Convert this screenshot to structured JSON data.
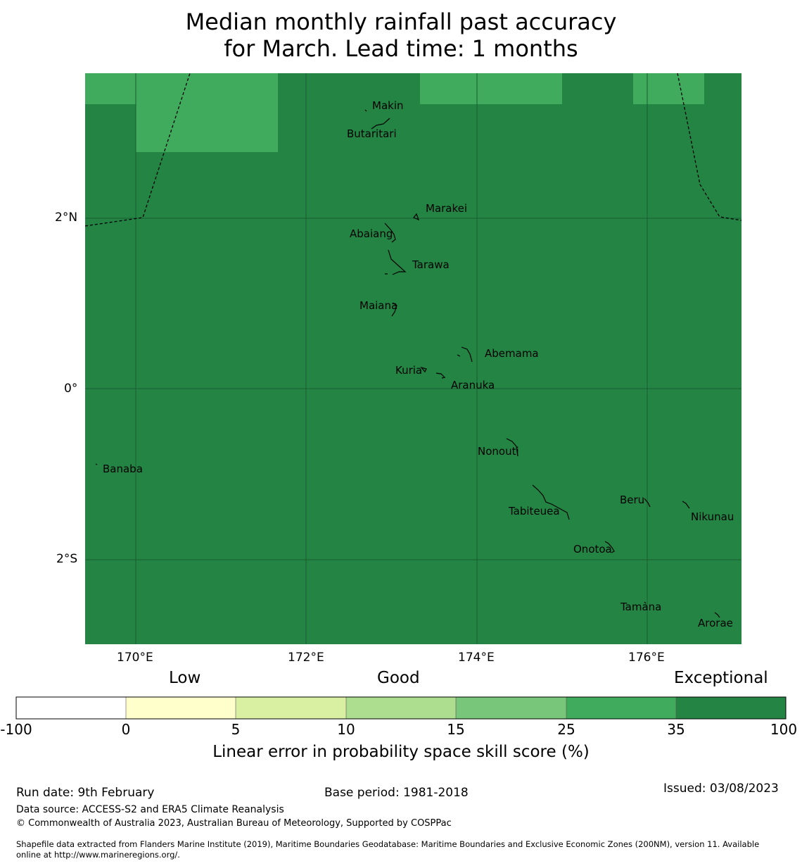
{
  "title": {
    "line1": "Median monthly rainfall past accuracy",
    "line2": "for March. Lead time: 1 months"
  },
  "map": {
    "lat_ticks": [
      "2°N",
      "0°",
      "2°S"
    ],
    "lon_ticks": [
      "170°E",
      "172°E",
      "174°E",
      "176°E"
    ],
    "colors": {
      "ocean": "#238443",
      "high_skill": "#41ab5d",
      "grid": "#1a5e30",
      "line": "#000000"
    },
    "islands": [
      {
        "name": "Makin"
      },
      {
        "name": "Butaritari"
      },
      {
        "name": "Marakei"
      },
      {
        "name": "Abaiang"
      },
      {
        "name": "Tarawa"
      },
      {
        "name": "Maiana"
      },
      {
        "name": "Abemama"
      },
      {
        "name": "Kuria"
      },
      {
        "name": "Aranuka"
      },
      {
        "name": "Banaba"
      },
      {
        "name": "Nonouti"
      },
      {
        "name": "Beru"
      },
      {
        "name": "Tabiteuea"
      },
      {
        "name": "Nikunau"
      },
      {
        "name": "Onotoa"
      },
      {
        "name": "Tamana"
      },
      {
        "name": "Arorae"
      }
    ]
  },
  "legend": {
    "categories": [
      "Low",
      "Good",
      "Exceptional"
    ],
    "ticks": [
      "-100",
      "0",
      "5",
      "10",
      "15",
      "25",
      "35",
      "100"
    ],
    "colors": [
      "#ffffff",
      "#ffffcc",
      "#d9f0a3",
      "#addd8e",
      "#78c679",
      "#41ab5d",
      "#238443"
    ],
    "label": "Linear error in probability space skill score (%)"
  },
  "footer": {
    "run_date": "Run date: 9th February",
    "base_period": "Base period: 1981-2018",
    "issued": "Issued: 03/08/2023",
    "data_source": "Data source: ACCESS-S2 and ERA5 Climate Reanalysis",
    "copyright": "© Commonwealth of Australia 2023, Australian Bureau of Meteorology, Supported by COSPPac",
    "shapefile_1": "Shapefile data extracted from Flanders Marine Institute (2019), Maritime Boundaries Geodatabase: Maritime Boundaries and Exclusive Economic Zones (200NM), version 11. Available",
    "shapefile_2": "online at http://www.marineregions.org/."
  }
}
